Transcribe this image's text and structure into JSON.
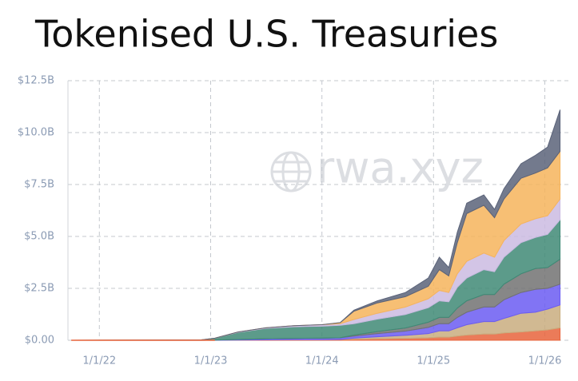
{
  "chart_data": {
    "type": "stacked-area",
    "title": "Tokenised U.S. Treasuries",
    "watermark": "rwa.xyz",
    "x": [
      "2021-10-01",
      "2022-12-01",
      "2023-01-15",
      "2023-04-01",
      "2023-07-01",
      "2023-10-01",
      "2024-01-01",
      "2024-03-01",
      "2024-04-15",
      "2024-07-01",
      "2024-10-01",
      "2024-12-15",
      "2025-01-20",
      "2025-02-20",
      "2025-03-20",
      "2025-04-20",
      "2025-06-15",
      "2025-07-20",
      "2025-08-20",
      "2025-10-15",
      "2025-12-01",
      "2026-01-10",
      "2026-02-20"
    ],
    "xlim": [
      "2021-09-20",
      "2026-03-22"
    ],
    "xticks": [
      {
        "value": "2022-01-01",
        "label": "1/1/22"
      },
      {
        "value": "2023-01-01",
        "label": "1/1/23"
      },
      {
        "value": "2024-01-01",
        "label": "1/1/24"
      },
      {
        "value": "2025-01-01",
        "label": "1/1/25"
      },
      {
        "value": "2026-01-01",
        "label": "1/1/26"
      }
    ],
    "ylim": [
      0,
      12.5
    ],
    "yticks": [
      {
        "value": 0,
        "label": "$0.00"
      },
      {
        "value": 2.5,
        "label": "$2.5B"
      },
      {
        "value": 5,
        "label": "$5.0B"
      },
      {
        "value": 7.5,
        "label": "$7.5B"
      },
      {
        "value": 10,
        "label": "$10.0B"
      },
      {
        "value": 12.5,
        "label": "$12.5B"
      }
    ],
    "grid": true,
    "series": [
      {
        "color": "#e8643c",
        "values": [
          0,
          0,
          0,
          0.01,
          0.02,
          0.03,
          0.03,
          0.04,
          0.05,
          0.07,
          0.09,
          0.12,
          0.15,
          0.15,
          0.2,
          0.25,
          0.3,
          0.3,
          0.35,
          0.4,
          0.45,
          0.5,
          0.6
        ]
      },
      {
        "color": "#c9ad7f",
        "values": [
          0,
          0,
          0,
          0,
          0,
          0,
          0,
          0,
          0.05,
          0.1,
          0.15,
          0.2,
          0.3,
          0.3,
          0.4,
          0.5,
          0.6,
          0.6,
          0.7,
          0.9,
          0.9,
          1.0,
          1.1
        ]
      },
      {
        "color": "#6b5cf2",
        "values": [
          0,
          0,
          0.01,
          0.03,
          0.05,
          0.06,
          0.07,
          0.08,
          0.1,
          0.15,
          0.2,
          0.3,
          0.35,
          0.35,
          0.5,
          0.6,
          0.7,
          0.7,
          0.9,
          1.0,
          1.1,
          1.0,
          1.0
        ]
      },
      {
        "color": "#727272",
        "values": [
          0,
          0,
          0,
          0,
          0,
          0,
          0,
          0,
          0.05,
          0.1,
          0.15,
          0.25,
          0.3,
          0.3,
          0.45,
          0.55,
          0.6,
          0.6,
          0.75,
          0.9,
          1.0,
          1.0,
          1.2
        ]
      },
      {
        "color": "#3f8a76",
        "values": [
          0,
          0.02,
          0.09,
          0.34,
          0.5,
          0.56,
          0.58,
          0.6,
          0.55,
          0.6,
          0.65,
          0.7,
          0.8,
          0.75,
          1.0,
          1.1,
          1.2,
          1.1,
          1.3,
          1.5,
          1.5,
          1.6,
          1.9
        ]
      },
      {
        "color": "#cbbbe2",
        "values": [
          0,
          0,
          0,
          0.02,
          0.03,
          0.05,
          0.07,
          0.08,
          0.2,
          0.28,
          0.36,
          0.43,
          0.5,
          0.45,
          0.65,
          0.8,
          0.8,
          0.7,
          0.8,
          0.9,
          0.9,
          0.9,
          1.0
        ]
      },
      {
        "color": "#f6b45c",
        "values": [
          0,
          0,
          0,
          0,
          0,
          0,
          0,
          0.05,
          0.4,
          0.5,
          0.5,
          0.6,
          1.0,
          0.8,
          1.5,
          2.3,
          2.3,
          1.9,
          2.0,
          2.2,
          2.2,
          2.3,
          2.3
        ]
      },
      {
        "color": "#5b6379",
        "values": [
          0,
          0,
          0,
          0,
          0,
          0,
          0,
          0,
          0.05,
          0.1,
          0.2,
          0.4,
          0.6,
          0.4,
          0.5,
          0.5,
          0.5,
          0.4,
          0.5,
          0.7,
          0.85,
          1.0,
          2.0
        ]
      }
    ]
  }
}
